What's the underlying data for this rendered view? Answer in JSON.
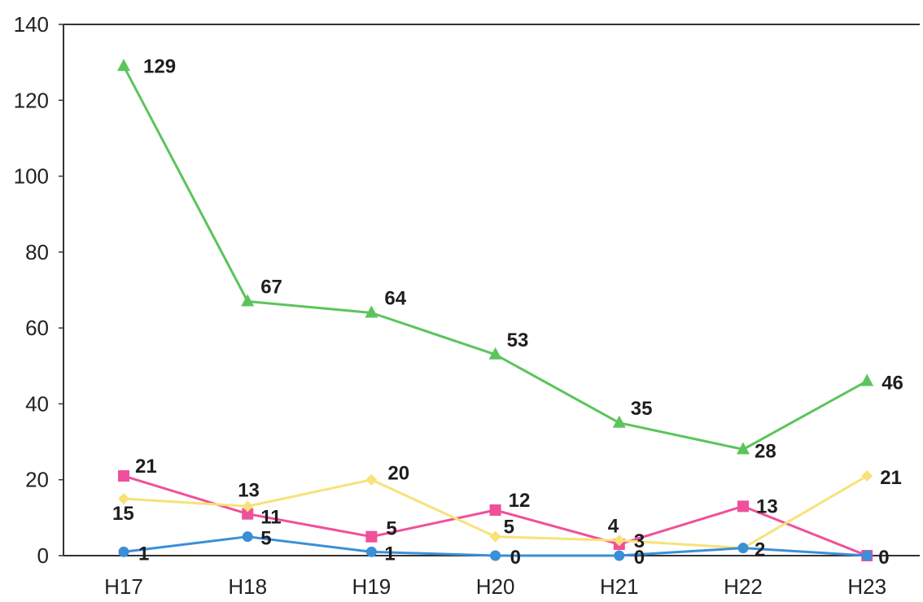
{
  "chart_data": {
    "type": "line",
    "title": "",
    "xlabel": "",
    "ylabel": "",
    "categories": [
      "H17",
      "H18",
      "H19",
      "H20",
      "H21",
      "H22",
      "H23"
    ],
    "ylim": [
      0,
      140
    ],
    "yticks": [
      0,
      20,
      40,
      60,
      80,
      100,
      120,
      140
    ],
    "grid": false,
    "legend": "none",
    "series": [
      {
        "color": "#5cc45c",
        "marker": "triangle",
        "values": [
          129,
          67,
          64,
          53,
          35,
          28,
          46
        ],
        "labels": [
          "129",
          "67",
          "64",
          "53",
          "35",
          "28",
          "46"
        ]
      },
      {
        "color": "#f0509a",
        "marker": "square",
        "values": [
          21,
          11,
          5,
          12,
          3,
          13,
          0
        ],
        "labels": [
          "21",
          "11",
          "5",
          "12",
          "3",
          "13",
          "0"
        ]
      },
      {
        "color": "#f7e27a",
        "marker": "diamond",
        "values": [
          15,
          13,
          20,
          5,
          4,
          2,
          21
        ],
        "labels": [
          "15",
          "13",
          "20",
          "5",
          "4",
          "2",
          "21"
        ]
      },
      {
        "color": "#3a8fd8",
        "marker": "circle",
        "values": [
          1,
          5,
          1,
          0,
          0,
          2,
          0
        ],
        "labels": [
          "1",
          "5",
          "1",
          "0",
          "0",
          "",
          ""
        ]
      }
    ]
  }
}
